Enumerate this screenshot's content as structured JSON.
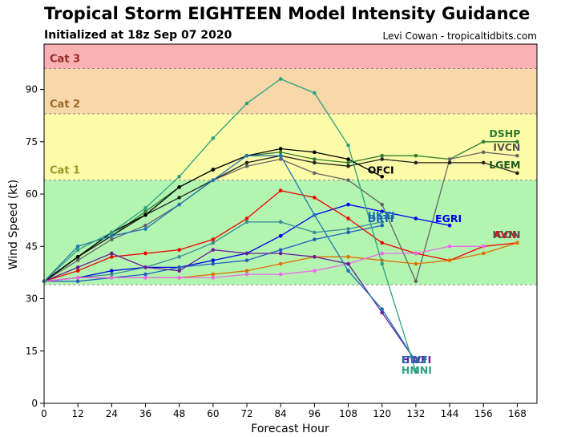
{
  "header": {
    "title": "Tropical Storm EIGHTEEN Model Intensity Guidance",
    "subtitle": "Initialized at 18z Sep 07 2020",
    "credit": "Levi Cowan - tropicaltidbits.com"
  },
  "chart_data": {
    "type": "line",
    "xlabel": "Forecast Hour",
    "ylabel": "Wind Speed (kt)",
    "xlim": [
      0,
      175
    ],
    "ylim": [
      0,
      103
    ],
    "xticks": [
      0,
      12,
      24,
      36,
      48,
      60,
      72,
      84,
      96,
      108,
      120,
      132,
      144,
      156,
      168
    ],
    "yticks": [
      0,
      15,
      30,
      45,
      60,
      75,
      90
    ],
    "grid": false,
    "bands": [
      {
        "label": "",
        "from": 34,
        "to": 64,
        "color": "#b3f5b0",
        "label_color": ""
      },
      {
        "label": "Cat 1",
        "from": 64,
        "to": 83,
        "color": "#fcfca8",
        "label_color": "#9a9a2a"
      },
      {
        "label": "Cat 2",
        "from": 83,
        "to": 96,
        "color": "#f8d8a8",
        "label_color": "#9a6a2a"
      },
      {
        "label": "Cat 3",
        "from": 96,
        "to": 103,
        "color": "#f8b0b0",
        "label_color": "#9a2a2a"
      }
    ],
    "series": [
      {
        "name": "DSHP",
        "color": "#2e7d32",
        "label_color": "#2e7d32",
        "x": [
          0,
          12,
          24,
          36,
          48,
          60,
          72,
          84,
          96,
          108,
          120,
          132,
          144,
          156,
          168
        ],
        "y": [
          35,
          42,
          48,
          55,
          62,
          67,
          71,
          72,
          70,
          69,
          71,
          71,
          70,
          75,
          75
        ]
      },
      {
        "name": "IVCN",
        "color": "#666666",
        "label_color": "#555555",
        "x": [
          0,
          12,
          24,
          36,
          48,
          60,
          72,
          84,
          96,
          108,
          120,
          132,
          144,
          156,
          168
        ],
        "y": [
          35,
          41,
          47,
          51,
          57,
          64,
          68,
          70,
          66,
          64,
          57,
          35,
          70,
          72,
          71
        ]
      },
      {
        "name": "LGEM",
        "color": "#222222",
        "label_color": "#1a5a1a",
        "x": [
          0,
          12,
          24,
          36,
          48,
          60,
          72,
          84,
          96,
          108,
          120,
          132,
          144,
          156,
          168
        ],
        "y": [
          35,
          42,
          48,
          54,
          59,
          64,
          69,
          71,
          69,
          68,
          70,
          69,
          69,
          69,
          66
        ]
      },
      {
        "name": "OFCI",
        "color": "#000000",
        "label_color": "#000000",
        "x": [
          0,
          12,
          24,
          36,
          48,
          60,
          72,
          84,
          96,
          108,
          120
        ],
        "y": [
          35,
          42,
          49,
          54,
          62,
          67,
          71,
          73,
          72,
          70,
          65
        ]
      },
      {
        "name": "EGRI",
        "color": "#0000ee",
        "label_color": "#0000ee",
        "x": [
          0,
          12,
          24,
          36,
          48,
          60,
          72,
          84,
          96,
          108,
          120,
          132,
          144
        ],
        "y": [
          35,
          36,
          38,
          39,
          39,
          41,
          43,
          48,
          54,
          57,
          55,
          53,
          51
        ]
      },
      {
        "name": "DRTI",
        "color": "#2060c0",
        "label_color": "#2060c0",
        "x": [
          0,
          12,
          24,
          36,
          48,
          60,
          72,
          84,
          96,
          108,
          120
        ],
        "y": [
          35,
          35,
          36,
          37,
          39,
          40,
          41,
          44,
          47,
          49,
          51
        ]
      },
      {
        "name": "UKXI",
        "color": "#3a8a9a",
        "label_color": "#1f6fb0",
        "x": [
          0,
          12,
          24,
          36,
          48,
          60,
          72,
          84,
          96,
          108,
          120
        ],
        "y": [
          35,
          36,
          37,
          39,
          42,
          46,
          52,
          52,
          49,
          50,
          52
        ]
      },
      {
        "name": "AVNI",
        "color": "#ee0000",
        "label_color": "#ee0000",
        "x": [
          0,
          12,
          24,
          36,
          48,
          60,
          72,
          84,
          96,
          108,
          120,
          132,
          144,
          156,
          168
        ],
        "y": [
          35,
          38,
          42,
          43,
          44,
          47,
          53,
          61,
          59,
          53,
          46,
          43,
          41,
          45,
          46
        ]
      },
      {
        "name": "ICON",
        "color": "#e07000",
        "label_color": "#555555",
        "x": [
          0,
          12,
          24,
          36,
          48,
          60,
          72,
          84,
          96,
          108,
          120,
          132,
          144,
          156,
          168
        ],
        "y": [
          35,
          36,
          36,
          36,
          36,
          37,
          38,
          40,
          42,
          42,
          41,
          40,
          41,
          43,
          46
        ]
      },
      {
        "name": "",
        "color": "#ee66ee",
        "label_color": "",
        "x": [
          0,
          12,
          24,
          36,
          48,
          60,
          72,
          84,
          96,
          108,
          120,
          132,
          144,
          156
        ],
        "y": [
          35,
          36,
          36,
          36,
          36,
          36,
          37,
          37,
          38,
          40,
          43,
          43,
          45,
          45
        ]
      },
      {
        "name": "HWFI",
        "color": "#6a1b9a",
        "label_color": "#6a1b9a",
        "x": [
          0,
          12,
          24,
          36,
          48,
          60,
          72,
          84,
          96,
          108,
          120,
          132
        ],
        "y": [
          35,
          39,
          43,
          39,
          38,
          44,
          43,
          43,
          42,
          40,
          26,
          12
        ]
      },
      {
        "name": "CTCI",
        "color": "#1f77b4",
        "label_color": "#1f77b4",
        "x": [
          0,
          12,
          24,
          36,
          48,
          60,
          72,
          84,
          96,
          108,
          120,
          132
        ],
        "y": [
          35,
          45,
          48,
          50,
          57,
          64,
          71,
          71,
          54,
          38,
          27,
          12
        ]
      },
      {
        "name": "HMNI",
        "color": "#2ca080",
        "label_color": "#2ca080",
        "x": [
          0,
          12,
          24,
          36,
          48,
          60,
          72,
          84,
          96,
          108,
          120,
          132
        ],
        "y": [
          35,
          44,
          49,
          56,
          65,
          76,
          86,
          93,
          89,
          74,
          40,
          9
        ]
      }
    ]
  }
}
